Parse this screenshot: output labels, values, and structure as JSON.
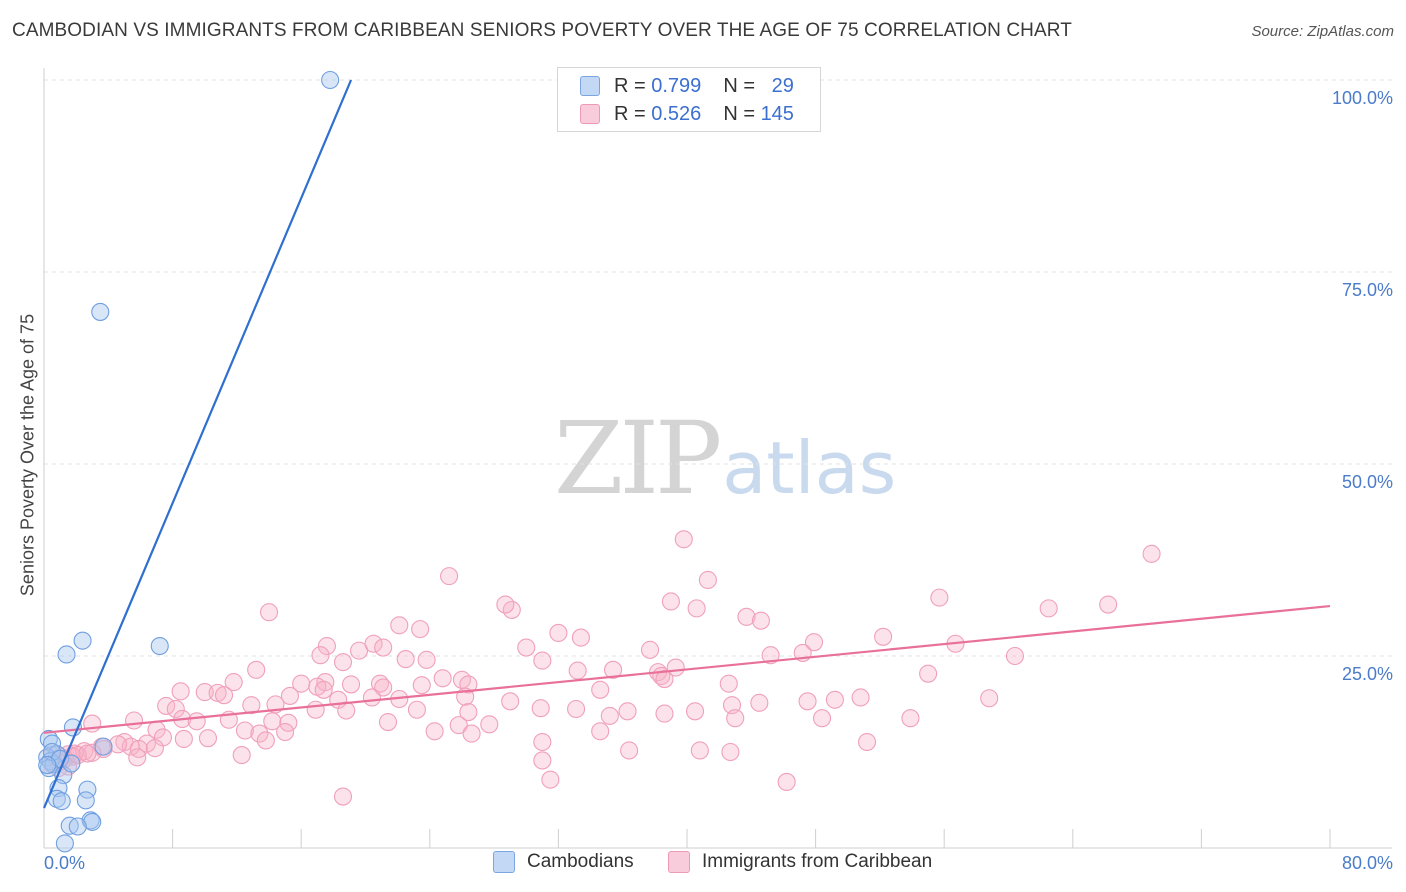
{
  "header": {
    "title": "CAMBODIAN VS IMMIGRANTS FROM CARIBBEAN SENIORS POVERTY OVER THE AGE OF 75 CORRELATION CHART",
    "source": "Source: ZipAtlas.com"
  },
  "watermark": {
    "zip": "ZIP",
    "atlas": "atlas"
  },
  "legend": {
    "r_label": "R =",
    "n_label": "N =",
    "rows": [
      {
        "r": "0.799",
        "n": "29",
        "color": "#a9c8f0"
      },
      {
        "r": "0.526",
        "n": "145",
        "color": "#f7bccd"
      }
    ]
  },
  "bottom_legend": {
    "items": [
      {
        "label": "Cambodians",
        "color": "#a9c8f0"
      },
      {
        "label": "Immigrants from Caribbean",
        "color": "#f7bccd"
      }
    ]
  },
  "chart_data": {
    "type": "scatter",
    "title": "CAMBODIAN VS IMMIGRANTS FROM CARIBBEAN SENIORS POVERTY OVER THE AGE OF 75 CORRELATION CHART",
    "ylabel": "Seniors Poverty Over the Age of 75",
    "xlabel": "",
    "xlim": [
      0,
      80
    ],
    "ylim": [
      0,
      100
    ],
    "x_tick_labels": [
      "0.0%",
      "80.0%"
    ],
    "y_tick_labels": [
      "25.0%",
      "50.0%",
      "75.0%",
      "100.0%"
    ],
    "y_ticks": [
      25,
      50,
      75,
      100
    ],
    "grid": true,
    "colors": {
      "blue": "#6f9fe0",
      "blue_line": "#2f6fd0",
      "pink": "#f08aab",
      "pink_line": "#e8709a"
    },
    "series": [
      {
        "name": "Cambodians",
        "stats": {
          "R": 0.799,
          "N": 29
        },
        "trend": {
          "x": [
            0,
            19.1
          ],
          "y": [
            5.2,
            100
          ]
        },
        "points": [
          [
            17.8,
            100.0
          ],
          [
            3.5,
            69.8
          ],
          [
            2.4,
            27.0
          ],
          [
            1.4,
            25.2
          ],
          [
            7.2,
            26.3
          ],
          [
            1.8,
            15.7
          ],
          [
            0.3,
            14.2
          ],
          [
            0.5,
            13.6
          ],
          [
            0.8,
            12.2
          ],
          [
            0.2,
            11.8
          ],
          [
            0.4,
            11.3
          ],
          [
            0.6,
            10.9
          ],
          [
            0.3,
            10.4
          ],
          [
            1.2,
            9.5
          ],
          [
            0.9,
            7.8
          ],
          [
            2.7,
            7.6
          ],
          [
            0.8,
            6.4
          ],
          [
            1.1,
            6.1
          ],
          [
            2.6,
            6.2
          ],
          [
            2.9,
            3.6
          ],
          [
            3.0,
            3.4
          ],
          [
            1.6,
            2.9
          ],
          [
            2.1,
            2.8
          ],
          [
            1.3,
            0.6
          ],
          [
            3.7,
            13.2
          ],
          [
            0.5,
            12.5
          ],
          [
            1.0,
            11.6
          ],
          [
            0.2,
            10.8
          ],
          [
            1.7,
            11.0
          ]
        ]
      },
      {
        "name": "Immigrants from Caribbean",
        "stats": {
          "R": 0.526,
          "N": 145
        },
        "trend": {
          "x": [
            0,
            80
          ],
          "y": [
            15.0,
            31.5
          ]
        },
        "points": [
          [
            39.8,
            40.2
          ],
          [
            68.9,
            38.3
          ],
          [
            25.2,
            35.4
          ],
          [
            41.3,
            34.9
          ],
          [
            14.0,
            30.7
          ],
          [
            29.1,
            31.0
          ],
          [
            28.7,
            31.7
          ],
          [
            39.0,
            32.1
          ],
          [
            40.6,
            31.2
          ],
          [
            43.7,
            30.1
          ],
          [
            44.6,
            29.6
          ],
          [
            55.7,
            32.6
          ],
          [
            62.5,
            31.2
          ],
          [
            66.2,
            31.7
          ],
          [
            22.1,
            29.0
          ],
          [
            23.4,
            28.5
          ],
          [
            32.0,
            28.0
          ],
          [
            33.4,
            27.4
          ],
          [
            47.9,
            26.8
          ],
          [
            52.2,
            27.5
          ],
          [
            56.7,
            26.6
          ],
          [
            17.6,
            26.3
          ],
          [
            19.6,
            25.7
          ],
          [
            20.5,
            26.6
          ],
          [
            21.1,
            26.1
          ],
          [
            30.0,
            26.1
          ],
          [
            37.7,
            25.8
          ],
          [
            45.2,
            25.1
          ],
          [
            47.2,
            25.4
          ],
          [
            60.4,
            25.0
          ],
          [
            17.2,
            25.1
          ],
          [
            18.6,
            24.2
          ],
          [
            22.5,
            24.6
          ],
          [
            23.8,
            24.5
          ],
          [
            31.0,
            24.4
          ],
          [
            33.2,
            23.1
          ],
          [
            35.4,
            23.2
          ],
          [
            38.2,
            22.9
          ],
          [
            38.4,
            22.4
          ],
          [
            38.6,
            22.0
          ],
          [
            39.3,
            23.5
          ],
          [
            55.0,
            22.7
          ],
          [
            13.2,
            23.2
          ],
          [
            11.8,
            21.6
          ],
          [
            16.0,
            21.4
          ],
          [
            17.5,
            21.6
          ],
          [
            17.0,
            21.0
          ],
          [
            19.1,
            21.3
          ],
          [
            20.9,
            21.4
          ],
          [
            21.1,
            20.9
          ],
          [
            23.5,
            21.2
          ],
          [
            24.8,
            22.1
          ],
          [
            26.0,
            21.9
          ],
          [
            26.4,
            21.3
          ],
          [
            34.6,
            20.6
          ],
          [
            42.6,
            21.4
          ],
          [
            8.5,
            20.4
          ],
          [
            10.0,
            20.3
          ],
          [
            10.8,
            20.2
          ],
          [
            11.2,
            19.9
          ],
          [
            15.3,
            19.8
          ],
          [
            17.4,
            20.6
          ],
          [
            18.3,
            19.3
          ],
          [
            20.4,
            19.6
          ],
          [
            22.1,
            19.4
          ],
          [
            26.2,
            19.7
          ],
          [
            29.0,
            19.1
          ],
          [
            47.5,
            19.1
          ],
          [
            49.2,
            19.3
          ],
          [
            50.8,
            19.6
          ],
          [
            58.8,
            19.5
          ],
          [
            7.6,
            18.5
          ],
          [
            8.2,
            18.1
          ],
          [
            12.9,
            18.6
          ],
          [
            14.4,
            18.7
          ],
          [
            16.9,
            18.0
          ],
          [
            18.8,
            17.9
          ],
          [
            23.2,
            18.0
          ],
          [
            26.4,
            17.7
          ],
          [
            30.9,
            18.2
          ],
          [
            33.1,
            18.1
          ],
          [
            36.3,
            17.8
          ],
          [
            38.6,
            17.5
          ],
          [
            42.8,
            18.6
          ],
          [
            44.5,
            18.9
          ],
          [
            5.6,
            16.6
          ],
          [
            8.6,
            16.8
          ],
          [
            9.5,
            16.5
          ],
          [
            11.5,
            16.7
          ],
          [
            14.2,
            16.5
          ],
          [
            15.2,
            16.3
          ],
          [
            21.4,
            16.4
          ],
          [
            25.8,
            16.0
          ],
          [
            27.7,
            16.1
          ],
          [
            35.2,
            17.2
          ],
          [
            40.5,
            17.8
          ],
          [
            43.0,
            16.9
          ],
          [
            48.4,
            16.9
          ],
          [
            53.9,
            16.9
          ],
          [
            7.0,
            15.4
          ],
          [
            12.5,
            15.3
          ],
          [
            13.4,
            14.9
          ],
          [
            15.0,
            15.1
          ],
          [
            24.3,
            15.2
          ],
          [
            26.6,
            14.9
          ],
          [
            34.6,
            15.2
          ],
          [
            7.4,
            14.4
          ],
          [
            8.7,
            14.2
          ],
          [
            10.2,
            14.3
          ],
          [
            13.8,
            14.0
          ],
          [
            31.0,
            13.8
          ],
          [
            51.2,
            13.8
          ],
          [
            3.0,
            16.2
          ],
          [
            5.0,
            13.8
          ],
          [
            6.4,
            13.6
          ],
          [
            5.4,
            13.2
          ],
          [
            4.6,
            13.5
          ],
          [
            3.6,
            13.2
          ],
          [
            5.9,
            12.9
          ],
          [
            6.9,
            13.0
          ],
          [
            3.7,
            12.9
          ],
          [
            2.5,
            12.6
          ],
          [
            3.0,
            12.4
          ],
          [
            1.9,
            12.3
          ],
          [
            1.5,
            12.2
          ],
          [
            1.8,
            11.9
          ],
          [
            1.3,
            11.6
          ],
          [
            1.1,
            11.3
          ],
          [
            1.5,
            10.6
          ],
          [
            2.1,
            12.1
          ],
          [
            1.0,
            11.9
          ],
          [
            0.8,
            11.3
          ],
          [
            0.5,
            10.9
          ],
          [
            0.9,
            10.4
          ],
          [
            0.5,
            12.1
          ],
          [
            5.8,
            11.8
          ],
          [
            12.3,
            12.1
          ],
          [
            36.4,
            12.7
          ],
          [
            40.8,
            12.7
          ],
          [
            42.7,
            12.5
          ],
          [
            31.0,
            11.4
          ],
          [
            31.5,
            8.9
          ],
          [
            46.2,
            8.6
          ],
          [
            18.6,
            6.7
          ],
          [
            2.7,
            12.3
          ]
        ]
      }
    ]
  }
}
